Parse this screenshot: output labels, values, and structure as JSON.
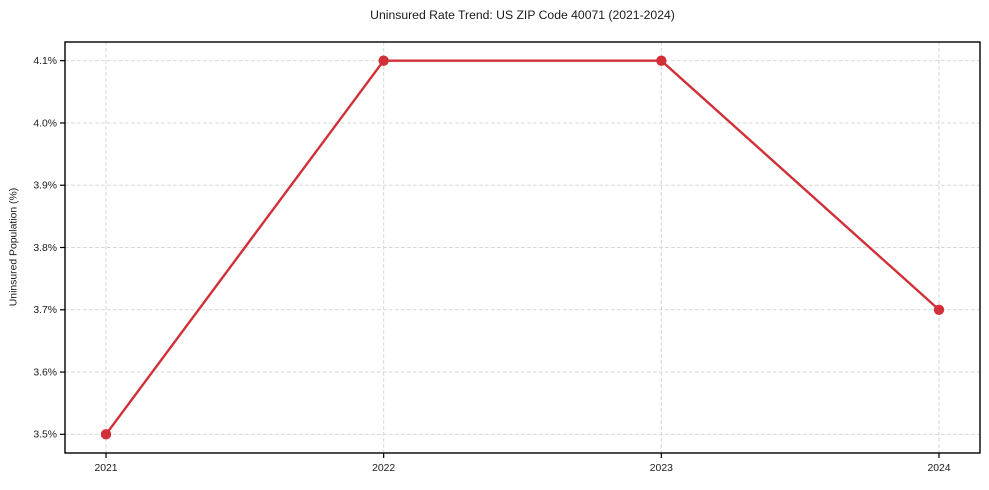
{
  "chart_data": {
    "type": "line",
    "title": "Uninsured Rate Trend: US ZIP Code 40071 (2021-2024)",
    "xlabel": "",
    "ylabel": "Uninsured Population (%)",
    "categories": [
      "2021",
      "2022",
      "2023",
      "2024"
    ],
    "values": [
      3.5,
      4.1,
      4.1,
      3.7
    ],
    "series": [
      {
        "name": "Uninsured Population (%)",
        "values": [
          3.5,
          4.1,
          4.1,
          3.7
        ]
      }
    ],
    "yticks": [
      3.5,
      3.6,
      3.7,
      3.8,
      3.9,
      4.0,
      4.1
    ],
    "ytick_labels": [
      "3.5%",
      "3.6%",
      "3.7%",
      "3.8%",
      "3.9%",
      "4.0%",
      "4.1%"
    ],
    "xtick_labels": [
      "2021",
      "2022",
      "2023",
      "2024"
    ],
    "ylim": [
      3.47,
      4.13
    ],
    "grid": true,
    "grid_style": "dashed",
    "legend": false,
    "colors": {
      "line": "#d23039",
      "marker": "#d23039",
      "grid": "#d7d7d7",
      "axis": "#000000",
      "text": "#1a1a1a",
      "background": "#ffffff"
    },
    "marker": "circle"
  }
}
